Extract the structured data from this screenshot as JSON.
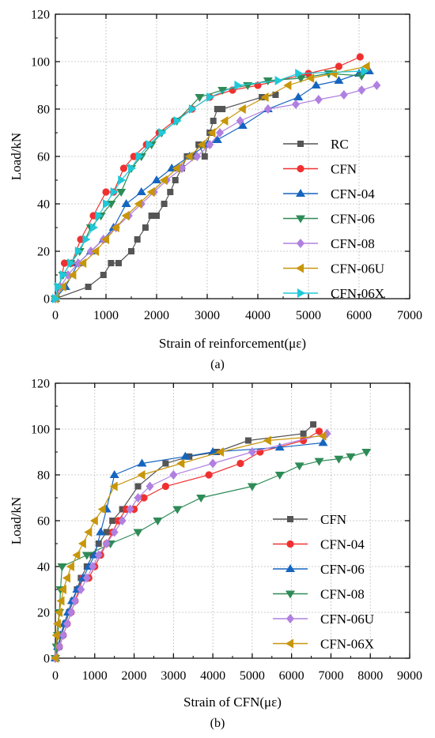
{
  "chart_data": [
    {
      "type": "line",
      "panel_label": "(a)",
      "xlabel": "Strain of reinforcement(με)",
      "ylabel": "Load/kN",
      "xlim": [
        0,
        7000
      ],
      "ylim": [
        0,
        120
      ],
      "xticks": [
        "0",
        "1000",
        "2000",
        "3000",
        "4000",
        "5000",
        "6000",
        "7000"
      ],
      "yticks": [
        "0",
        "20",
        "40",
        "60",
        "80",
        "100",
        "120"
      ],
      "grid": true,
      "legend_position": "right-middle",
      "series": [
        {
          "name": "RC",
          "color": "#555555",
          "marker": "square",
          "x": [
            0,
            650,
            950,
            1100,
            1250,
            1500,
            1620,
            1780,
            1900,
            2000,
            2150,
            2270,
            2370,
            2500,
            2600,
            2730,
            2830,
            2950,
            3050,
            3120,
            3200,
            3300,
            4080,
            4350
          ],
          "y": [
            0,
            5,
            10,
            15,
            15,
            20,
            25,
            30,
            35,
            35,
            40,
            45,
            50,
            55,
            60,
            60,
            65,
            60,
            70,
            75,
            80,
            80,
            85,
            86
          ]
        },
        {
          "name": "CFN",
          "color": "#f03030",
          "marker": "circle",
          "x": [
            0,
            80,
            180,
            320,
            500,
            750,
            1000,
            1150,
            1350,
            1550,
            1800,
            2050,
            2350,
            2700,
            3050,
            3500,
            4000,
            5000,
            5600,
            6020
          ],
          "y": [
            0,
            5,
            15,
            15,
            25,
            35,
            45,
            45,
            55,
            60,
            65,
            70,
            75,
            80,
            85,
            88,
            90,
            95,
            98,
            102
          ]
        },
        {
          "name": "CFN-04",
          "color": "#1565c0",
          "marker": "triangle-up",
          "x": [
            0,
            200,
            450,
            700,
            950,
            1150,
            1400,
            1700,
            2000,
            2300,
            2650,
            3000,
            3200,
            3700,
            4200,
            4800,
            5150,
            5600,
            6000,
            6200
          ],
          "y": [
            0,
            5,
            15,
            20,
            25,
            30,
            40,
            45,
            50,
            55,
            60,
            65,
            67,
            73,
            80,
            85,
            90,
            92,
            95,
            96
          ]
        },
        {
          "name": "CFN-06",
          "color": "#2e8b57",
          "marker": "triangle-down",
          "x": [
            0,
            60,
            150,
            300,
            480,
            700,
            900,
            1100,
            1300,
            1500,
            1700,
            1900,
            2100,
            2400,
            2850,
            3300,
            3800,
            4200,
            4850,
            5400,
            6050
          ],
          "y": [
            0,
            5,
            10,
            15,
            20,
            30,
            35,
            40,
            45,
            55,
            60,
            65,
            70,
            75,
            85,
            88,
            90,
            92,
            93,
            95,
            94
          ]
        },
        {
          "name": "CFN-08",
          "color": "#b080e0",
          "marker": "diamond",
          "x": [
            0,
            100,
            250,
            450,
            700,
            950,
            1200,
            1450,
            1700,
            1950,
            2200,
            2500,
            2800,
            3050,
            3250,
            3650,
            4200,
            4750,
            5200,
            5700,
            6050,
            6350
          ],
          "y": [
            0,
            5,
            10,
            15,
            20,
            25,
            30,
            35,
            40,
            45,
            50,
            55,
            60,
            65,
            70,
            75,
            80,
            82,
            84,
            86,
            88,
            90
          ]
        },
        {
          "name": "CFN-06U",
          "color": "#c8960a",
          "marker": "triangle-left",
          "x": [
            0,
            150,
            350,
            550,
            800,
            1000,
            1200,
            1400,
            1650,
            1900,
            2150,
            2400,
            2650,
            2900,
            3100,
            3350,
            3700,
            4150,
            4600,
            5050,
            5500,
            6150
          ],
          "y": [
            0,
            5,
            10,
            15,
            20,
            25,
            30,
            35,
            40,
            45,
            50,
            55,
            60,
            65,
            70,
            75,
            80,
            85,
            90,
            93,
            95,
            98
          ]
        },
        {
          "name": "CFN-06X",
          "color": "#20c8d8",
          "marker": "triangle-right",
          "x": [
            0,
            50,
            150,
            300,
            450,
            600,
            750,
            850,
            1000,
            1150,
            1300,
            1500,
            1650,
            1850,
            2100,
            2400,
            2700,
            3050,
            3600,
            4400,
            4800,
            6100
          ],
          "y": [
            0,
            5,
            10,
            15,
            20,
            25,
            30,
            35,
            40,
            45,
            50,
            55,
            60,
            65,
            70,
            75,
            80,
            85,
            90,
            92,
            95,
            96
          ]
        }
      ]
    },
    {
      "type": "line",
      "panel_label": "(b)",
      "xlabel": "Strain of CFN(με)",
      "ylabel": "Load/kN",
      "xlim": [
        0,
        9000
      ],
      "ylim": [
        0,
        120
      ],
      "xticks": [
        "0",
        "1000",
        "2000",
        "3000",
        "4000",
        "5000",
        "6000",
        "7000",
        "8000",
        "9000"
      ],
      "yticks": [
        "0",
        "20",
        "40",
        "60",
        "80",
        "100",
        "120"
      ],
      "grid": true,
      "legend_position": "right-middle",
      "series": [
        {
          "name": "CFN",
          "color": "#555555",
          "marker": "square",
          "x": [
            0,
            80,
            150,
            250,
            350,
            450,
            550,
            650,
            800,
            950,
            1100,
            1300,
            1450,
            1700,
            2100,
            2800,
            3400,
            4100,
            4900,
            6300,
            6550
          ],
          "y": [
            0,
            5,
            10,
            15,
            20,
            25,
            30,
            35,
            40,
            45,
            50,
            55,
            60,
            65,
            75,
            85,
            88,
            90,
            95,
            98,
            102
          ]
        },
        {
          "name": "CFN-04",
          "color": "#f03030",
          "marker": "circle",
          "x": [
            0,
            100,
            200,
            300,
            400,
            500,
            600,
            700,
            850,
            1000,
            1150,
            1300,
            1450,
            1600,
            1800,
            2000,
            2250,
            2800,
            3900,
            4700,
            5200,
            6300,
            6700
          ],
          "y": [
            0,
            5,
            10,
            15,
            20,
            25,
            30,
            35,
            35,
            40,
            45,
            50,
            55,
            60,
            65,
            65,
            70,
            75,
            80,
            85,
            90,
            95,
            99
          ]
        },
        {
          "name": "CFN-06",
          "color": "#1565c0",
          "marker": "triangle-up",
          "x": [
            0,
            60,
            130,
            220,
            320,
            420,
            550,
            700,
            850,
            1000,
            1150,
            1300,
            1500,
            2200,
            3300,
            4000,
            5700,
            6800
          ],
          "y": [
            0,
            5,
            10,
            15,
            20,
            25,
            30,
            35,
            40,
            45,
            55,
            65,
            80,
            85,
            88,
            90,
            92,
            94
          ]
        },
        {
          "name": "CFN-08",
          "color": "#2e8b57",
          "marker": "triangle-down",
          "x": [
            0,
            30,
            60,
            100,
            130,
            170,
            800,
            1400,
            2100,
            2600,
            3100,
            3700,
            5000,
            5700,
            6200,
            6700,
            7200,
            7500,
            7900
          ],
          "y": [
            0,
            5,
            10,
            20,
            30,
            40,
            45,
            50,
            55,
            60,
            65,
            70,
            75,
            80,
            84,
            86,
            87,
            88,
            90
          ]
        },
        {
          "name": "CFN-06U",
          "color": "#b080e0",
          "marker": "diamond",
          "x": [
            0,
            100,
            200,
            300,
            400,
            500,
            650,
            800,
            950,
            1100,
            1300,
            1500,
            1700,
            1900,
            2100,
            2400,
            3000,
            4000,
            5000,
            6900
          ],
          "y": [
            0,
            5,
            10,
            15,
            20,
            25,
            30,
            35,
            40,
            45,
            50,
            55,
            60,
            65,
            70,
            75,
            80,
            85,
            90,
            98
          ]
        },
        {
          "name": "CFN-06X",
          "color": "#c8960a",
          "marker": "triangle-left",
          "x": [
            0,
            30,
            60,
            100,
            150,
            200,
            300,
            400,
            550,
            700,
            850,
            1000,
            1200,
            1500,
            2200,
            3200,
            4200,
            5400,
            6800
          ],
          "y": [
            0,
            10,
            15,
            20,
            25,
            30,
            35,
            40,
            45,
            50,
            55,
            60,
            65,
            75,
            80,
            85,
            90,
            95,
            97
          ]
        }
      ]
    }
  ]
}
